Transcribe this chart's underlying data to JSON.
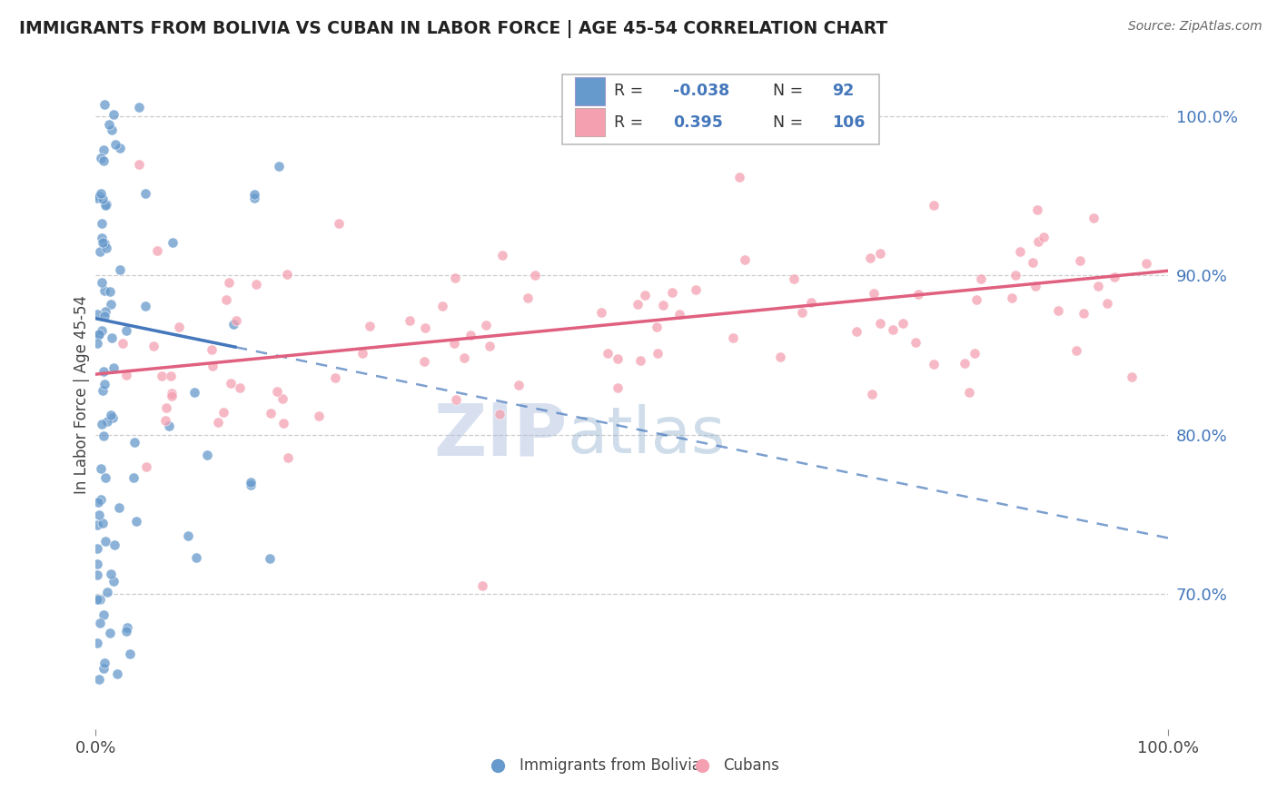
{
  "title": "IMMIGRANTS FROM BOLIVIA VS CUBAN IN LABOR FORCE | AGE 45-54 CORRELATION CHART",
  "source": "Source: ZipAtlas.com",
  "ylabel": "In Labor Force | Age 45-54",
  "bolivia_color": "#6699CC",
  "bolivia_line_color": "#4477BB",
  "cuba_color": "#F4A0B0",
  "cuba_line_color": "#E06080",
  "bolivia_R": -0.038,
  "bolivia_N": 92,
  "cuba_R": 0.395,
  "cuba_N": 106,
  "xlim": [
    0.0,
    1.0
  ],
  "ylim": [
    0.615,
    1.035
  ],
  "right_yticks": [
    0.7,
    0.8,
    0.9,
    1.0
  ],
  "right_yticklabels": [
    "70.0%",
    "80.0%",
    "90.0%",
    "100.0%"
  ],
  "xticks": [
    0.0,
    1.0
  ],
  "xticklabels": [
    "0.0%",
    "100.0%"
  ],
  "watermark_zip": "ZIP",
  "watermark_atlas": "atlas",
  "legend_entries": [
    "Immigrants from Bolivia",
    "Cubans"
  ],
  "bolivia_line_x0": 0.0,
  "bolivia_line_y0": 0.873,
  "bolivia_line_x1": 1.0,
  "bolivia_line_y1": 0.735,
  "cuba_line_x0": 0.0,
  "cuba_line_y0": 0.838,
  "cuba_line_x1": 1.0,
  "cuba_line_y1": 0.903
}
